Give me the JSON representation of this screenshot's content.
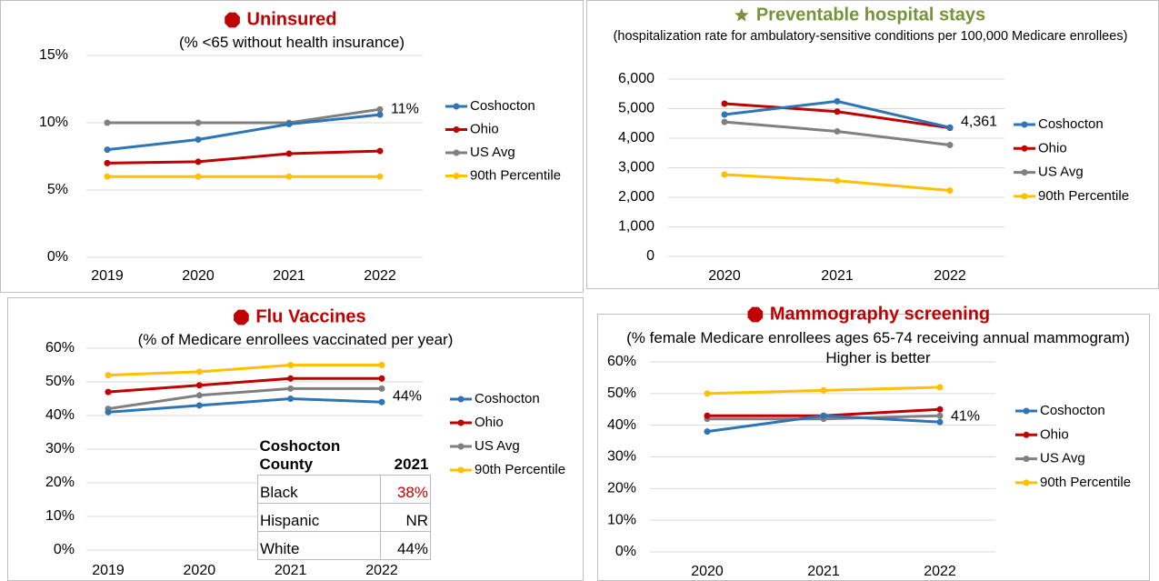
{
  "chart_data": [
    {
      "type": "line",
      "title": "Uninsured",
      "subtitle": "(% <65 without health insurance)",
      "categories": [
        "2019",
        "2020",
        "2021",
        "2022"
      ],
      "series": [
        {
          "name": "Coshocton",
          "color": "#2e75b6",
          "values": [
            8,
            8.75,
            9.9,
            10.6
          ],
          "value_labels": [
            null,
            null,
            null,
            "11%"
          ]
        },
        {
          "name": "Ohio",
          "color": "#c00000",
          "values": [
            7,
            7.1,
            7.7,
            7.9
          ]
        },
        {
          "name": "US Avg",
          "color": "#808080",
          "values": [
            10,
            10,
            10,
            11
          ]
        },
        {
          "name": "90th Percentile",
          "color": "#ffc000",
          "values": [
            6,
            6,
            6,
            6
          ]
        }
      ],
      "ylim": [
        0,
        15
      ],
      "yticks": [
        {
          "value": 0,
          "label": "0%"
        },
        {
          "value": 5,
          "label": "5%"
        },
        {
          "value": 10,
          "label": "10%"
        },
        {
          "value": 15,
          "label": "15%"
        }
      ],
      "grid": true,
      "legend": "right"
    },
    {
      "type": "line",
      "title": "Preventable hospital stays",
      "subtitle": "(hospitalization rate for ambulatory-sensitive conditions per 100,000 Medicare enrollees)",
      "categories": [
        "2020",
        "2021",
        "2022"
      ],
      "series": [
        {
          "name": "Coshocton",
          "color": "#2e75b6",
          "values": [
            4800,
            5250,
            4361
          ],
          "value_labels": [
            null,
            null,
            "4,361"
          ]
        },
        {
          "name": "Ohio",
          "color": "#c00000",
          "values": [
            5170,
            4900,
            4350
          ]
        },
        {
          "name": "US Avg",
          "color": "#808080",
          "values": [
            4550,
            4230,
            3770
          ]
        },
        {
          "name": "90th Percentile",
          "color": "#ffc000",
          "values": [
            2770,
            2560,
            2230
          ]
        }
      ],
      "ylim": [
        0,
        6000
      ],
      "yticks": [
        0,
        {
          "value": 1000,
          "label": "1,000"
        },
        {
          "value": 2000,
          "label": "2,000"
        },
        {
          "value": 3000,
          "label": "3,000"
        },
        {
          "value": 4000,
          "label": "4,000"
        },
        {
          "value": 5000,
          "label": "5,000"
        },
        {
          "value": 6000,
          "label": "6,000"
        }
      ],
      "grid": true,
      "legend": "right"
    },
    {
      "type": "line",
      "title": "Flu Vaccines",
      "subtitle": "(% of Medicare enrollees vaccinated per year)",
      "categories": [
        "2019",
        "2020",
        "2021",
        "2022"
      ],
      "series": [
        {
          "name": "Coshocton",
          "color": "#2e75b6",
          "values": [
            41,
            43,
            45,
            44
          ],
          "value_labels": [
            null,
            null,
            null,
            "44%"
          ]
        },
        {
          "name": "Ohio",
          "color": "#c00000",
          "values": [
            47,
            49,
            51,
            51
          ]
        },
        {
          "name": "US Avg",
          "color": "#808080",
          "values": [
            42,
            46,
            48,
            48
          ]
        },
        {
          "name": "90th Percentile",
          "color": "#ffc000",
          "values": [
            52,
            53,
            55,
            55
          ]
        }
      ],
      "ylim": [
        0,
        60
      ],
      "yticks": [
        {
          "value": 0,
          "label": "0%"
        },
        {
          "value": 10,
          "label": "10%"
        },
        {
          "value": 20,
          "label": "20%"
        },
        {
          "value": 30,
          "label": "30%"
        },
        {
          "value": 40,
          "label": "40%"
        },
        {
          "value": 50,
          "label": "50%"
        },
        {
          "value": 60,
          "label": "60%"
        }
      ],
      "grid": true,
      "legend": "right",
      "table": {
        "header": [
          "Coshocton County",
          "2021"
        ],
        "rows": [
          [
            "Black",
            "38%"
          ],
          [
            "Hispanic",
            "NR"
          ],
          [
            "White",
            "44%"
          ]
        ]
      }
    },
    {
      "type": "line",
      "title": "Mammography screening",
      "subtitle": "(% female Medicare enrollees ages 65-74 receiving annual mammogram)",
      "note": "Higher is better",
      "categories": [
        "2020",
        "2021",
        "2022"
      ],
      "series": [
        {
          "name": "Coshocton",
          "color": "#2e75b6",
          "values": [
            38,
            43,
            41
          ],
          "value_labels": [
            null,
            null,
            "41%"
          ]
        },
        {
          "name": "Ohio",
          "color": "#c00000",
          "values": [
            43,
            43,
            45
          ]
        },
        {
          "name": "US Avg",
          "color": "#808080",
          "values": [
            42,
            42,
            43
          ]
        },
        {
          "name": "90th Percentile",
          "color": "#ffc000",
          "values": [
            50,
            51,
            52
          ]
        }
      ],
      "ylim": [
        0,
        60
      ],
      "yticks": [
        {
          "value": 0,
          "label": "0%"
        },
        {
          "value": 10,
          "label": "10%"
        },
        {
          "value": 20,
          "label": "20%"
        },
        {
          "value": 30,
          "label": "30%"
        },
        {
          "value": 40,
          "label": "40%"
        },
        {
          "value": 50,
          "label": "50%"
        },
        {
          "value": 60,
          "label": "60%"
        }
      ],
      "grid": true,
      "legend": "right"
    }
  ]
}
